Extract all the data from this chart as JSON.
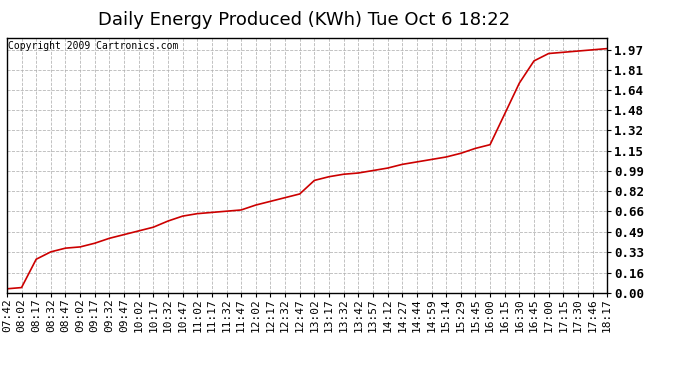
{
  "title": "Daily Energy Produced (KWh) Tue Oct 6 18:22",
  "copyright": "Copyright 2009 Cartronics.com",
  "line_color": "#cc0000",
  "background_color": "#ffffff",
  "plot_bg_color": "#ffffff",
  "grid_color": "#b0b0b0",
  "yticks": [
    0.0,
    0.16,
    0.33,
    0.49,
    0.66,
    0.82,
    0.99,
    1.15,
    1.32,
    1.48,
    1.64,
    1.81,
    1.97
  ],
  "ylim": [
    0.0,
    2.07
  ],
  "x_labels": [
    "07:42",
    "08:02",
    "08:17",
    "08:32",
    "08:47",
    "09:02",
    "09:17",
    "09:32",
    "09:47",
    "10:02",
    "10:17",
    "10:32",
    "10:47",
    "11:02",
    "11:17",
    "11:32",
    "11:47",
    "12:02",
    "12:17",
    "12:32",
    "12:47",
    "13:02",
    "13:17",
    "13:32",
    "13:42",
    "13:57",
    "14:12",
    "14:27",
    "14:44",
    "14:59",
    "15:14",
    "15:29",
    "15:45",
    "16:00",
    "16:15",
    "16:30",
    "16:45",
    "17:00",
    "17:15",
    "17:30",
    "17:46",
    "18:17"
  ],
  "y_data": [
    0.03,
    0.04,
    0.27,
    0.33,
    0.36,
    0.37,
    0.4,
    0.44,
    0.47,
    0.5,
    0.53,
    0.58,
    0.62,
    0.64,
    0.65,
    0.66,
    0.67,
    0.71,
    0.74,
    0.77,
    0.8,
    0.91,
    0.94,
    0.96,
    0.97,
    0.99,
    1.01,
    1.04,
    1.06,
    1.08,
    1.1,
    1.13,
    1.17,
    1.2,
    1.45,
    1.7,
    1.88,
    1.94,
    1.95,
    1.96,
    1.97,
    1.98
  ],
  "title_fontsize": 13,
  "tick_fontsize": 8,
  "copyright_fontsize": 7,
  "ylabel_fontsize": 9
}
